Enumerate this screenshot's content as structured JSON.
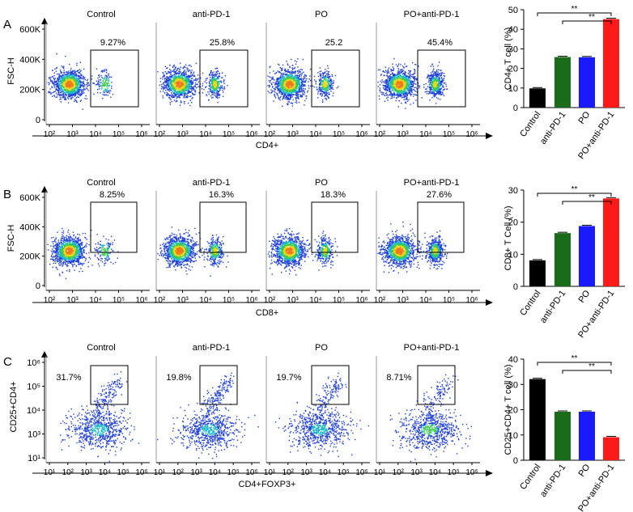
{
  "colors": {
    "control": "#000000",
    "anti_pd1": "#1a6b1a",
    "po": "#1a1aff",
    "po_anti_pd1": "#ff1a1a",
    "dot_blue": "#1f3fd9",
    "dot_cyan": "#18b8c8",
    "dot_green": "#3cc84a",
    "dot_yellow": "#e8d81c",
    "dot_orange": "#f07a18"
  },
  "groups": [
    "Control",
    "anti-PD-1",
    "PO",
    "PO+anti-PD-1"
  ],
  "panels": [
    {
      "letter": "A",
      "xlabel": "CD4+",
      "ylabel": "FSC-H",
      "yticks": [
        "0",
        "200K",
        "400K",
        "600K"
      ],
      "xticks": [
        "10²",
        "10³",
        "10⁴",
        "10⁵",
        "10⁶"
      ],
      "percentages": [
        "9.27%",
        "25.8%",
        "25.2",
        "45.4%"
      ]
    },
    {
      "letter": "B",
      "xlabel": "CD8+",
      "ylabel": "FSC-H",
      "yticks": [
        "0",
        "200K",
        "400K",
        "600K"
      ],
      "xticks": [
        "10²",
        "10³",
        "10⁴",
        "10⁵",
        "10⁶"
      ],
      "percentages": [
        "8.25%",
        "16.3%",
        "18.3%",
        "27.6%"
      ]
    },
    {
      "letter": "C",
      "xlabel": "CD4+FOXP3+",
      "ylabel": "CD25+CD4+",
      "yticks": [
        "10¹",
        "10³",
        "10⁴",
        "10⁵",
        "10⁶"
      ],
      "xticks": [
        "10¹",
        "10²",
        "10³",
        "10⁴",
        "10⁵",
        "10⁶"
      ],
      "percentages": [
        "31.7%",
        "19.8%",
        "19.7%",
        "8.71%"
      ]
    }
  ],
  "chart_data": [
    {
      "type": "bar",
      "title": "",
      "ylabel": "CD4+ T cell (%)",
      "categories": [
        "Control",
        "anti-PD-1",
        "PO",
        "PO+anti-PD-1"
      ],
      "values": [
        9.8,
        25.8,
        25.7,
        45.2
      ],
      "ylim": [
        0,
        50
      ],
      "yticks": [
        0,
        10,
        20,
        30,
        40,
        50
      ],
      "significance": [
        "**",
        "**"
      ]
    },
    {
      "type": "bar",
      "title": "",
      "ylabel": "CD8+ T Cell  (%)",
      "categories": [
        "Control",
        "anti-PD-1",
        "PO",
        "PO+anti-PD-1"
      ],
      "values": [
        8.1,
        16.6,
        18.8,
        27.4
      ],
      "ylim": [
        0,
        30
      ],
      "yticks": [
        0,
        10,
        20,
        30
      ],
      "significance": [
        "**",
        "**"
      ]
    },
    {
      "type": "bar",
      "title": "",
      "ylabel": "CD25+CD4+ T cell  (%)",
      "categories": [
        "Control",
        "anti-PD-1",
        "PO",
        "PO+anti-PD-1"
      ],
      "values": [
        32.1,
        19.2,
        19.2,
        9.1
      ],
      "ylim": [
        0,
        40
      ],
      "yticks": [
        0,
        10,
        20,
        30,
        40
      ],
      "significance": [
        "**",
        "**"
      ]
    }
  ]
}
